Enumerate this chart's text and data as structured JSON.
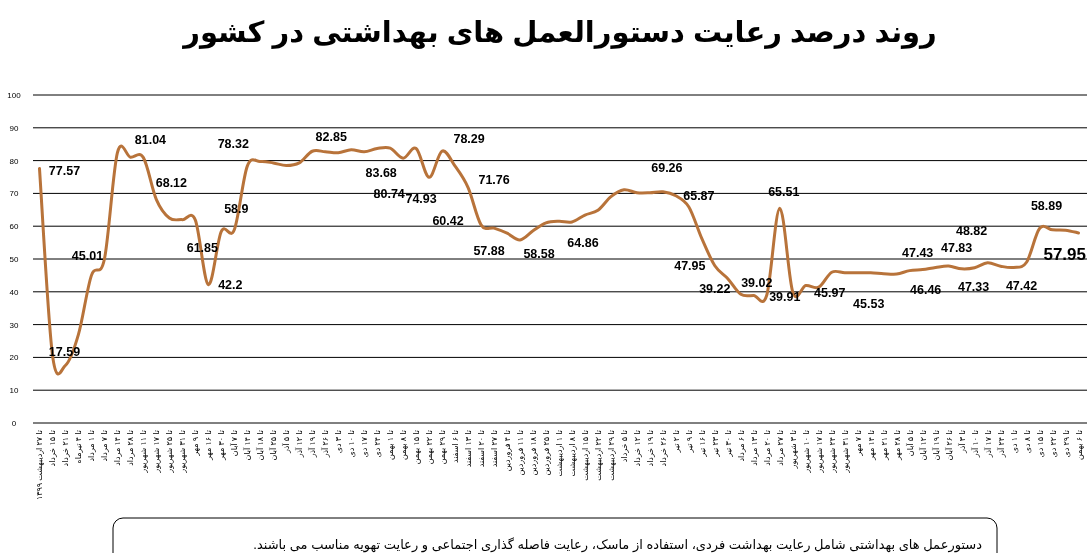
{
  "chart_data": {
    "type": "line",
    "title": "روند درصد رعایت دستورالعمل های بهداشتی در کشور",
    "annotations": [
      "دستورعمل های بهداشتی شامل رعایت بهداشت فردی، استفاده از ماسک، رعایت فاصله گذاری اجتماعی و رعایت تهویه مناسب می باشند."
    ],
    "categories": [
      "تا ۲۷ اردیبهشت ۱۳۹۹",
      "تا ۱۵ خرداد",
      "تا ۲۱ خرداد",
      "تا ۴ تیرماه",
      "تا ۱ مرداد",
      "تا ۷ مرداد",
      "تا ۱۴ مرداد",
      "تا ۲۸ مرداد",
      "تا ۱۱ شهریور",
      "تا ۱۷ شهریور",
      "تا ۲۵ شهریور",
      "تا ۳۱ شهریور",
      "تا ۹ مهر",
      "تا ۱۶ مهر",
      "تا ۳۰ مهر",
      "تا ۷ آبان",
      "تا ۱۴ آبان",
      "تا ۱۸ آبان",
      "تا ۲۵ آبان",
      "تا ۵ آذر",
      "تا ۱۲ آذر",
      "تا ۱۹ آذر",
      "تا ۲۶ آذر",
      "تا ۳ دی",
      "تا ۱۰ دی",
      "تا ۱۷ دی",
      "تا ۲۴ دی",
      "تا ۱ بهمن",
      "تا ۸ بهمن",
      "تا ۱۵ بهمن",
      "تا ۲۲ بهمن",
      "تا ۲۹ بهمن",
      "تا ۶ اسفند",
      "تا ۱۳ اسفند",
      "تا ۲۰ اسفند",
      "تا ۲۷ اسفند",
      "تا ۴ فروردین",
      "تا ۱۱ فروردین",
      "تا ۱۸ فروردین",
      "تا ۲۵ فروردین",
      "تا ۱ اردیبهشت",
      "تا ۸ اردیبهشت",
      "تا ۱۵ اردیبهشت",
      "تا ۲۲ اردیبهشت",
      "تا ۲۹ اردیبهشت",
      "تا ۵ خرداد",
      "تا ۱۲ خرداد",
      "تا ۱۹ خرداد",
      "تا ۲۶ خرداد",
      "تا ۲ تیر",
      "تا ۹ تیر",
      "تا ۱۶ تیر",
      "تا ۲۳ تیر",
      "تا ۳۰ تیر",
      "تا ۶ مرداد",
      "تا ۱۳ مرداد",
      "تا ۲۰ مرداد",
      "تا ۲۷ مرداد",
      "تا ۳ شهریور",
      "تا ۱۰ شهریور",
      "تا ۱۷ شهریور",
      "تا ۲۴ شهریور",
      "تا ۳۱ شهریور",
      "تا ۷ مهر",
      "تا ۱۴ مهر",
      "تا ۲۱ مهر",
      "تا ۲۸ مهر",
      "تا ۵ آبان",
      "تا ۱۲ آبان",
      "تا ۱۹ آبان",
      "تا ۲۶ آبان",
      "تا ۳ آذر",
      "تا ۱۰ آذر",
      "تا ۱۷ آذر",
      "تا ۲۴ آذر",
      "تا ۱ دی",
      "تا ۸ دی",
      "تا ۱۵ دی",
      "تا ۲۲ دی",
      "تا ۲۹ دی",
      "تا ۶ بهمن"
    ],
    "series": [
      {
        "color": "#b8733a",
        "values": [
          77.57,
          20.7,
          17.59,
          27,
          45.01,
          50,
          82.4,
          81.04,
          80.9,
          68.12,
          62.5,
          62,
          61.85,
          42.2,
          58.4,
          58.9,
          78.32,
          79.7,
          79.3,
          78.5,
          79.3,
          82.85,
          82.7,
          82.4,
          83.3,
          82.7,
          83.68,
          83.8,
          80.74,
          83.7,
          74.93,
          82.9,
          78.29,
          71.76,
          60.42,
          59.4,
          57.88,
          55.8,
          58.58,
          61,
          61.5,
          61.3,
          63.4,
          64.86,
          69,
          71.1,
          70.2,
          70.2,
          70.5,
          69.26,
          65.87,
          56.2,
          47.95,
          44,
          39.22,
          38.9,
          39.02,
          65.51,
          39.91,
          41.9,
          41.4,
          45.97,
          45.8,
          45.8,
          45.8,
          45.53,
          45.4,
          46.46,
          46.8,
          47.43,
          47.83,
          47,
          47.33,
          48.82,
          47.8,
          47.42,
          49,
          59.3,
          58.89,
          58.8,
          57.95
        ],
        "value_labels": [
          "77.57",
          null,
          "17.59",
          null,
          "45.01",
          null,
          null,
          "81.04",
          null,
          "68.12",
          null,
          null,
          "61.85",
          "42.2",
          null,
          "58.9",
          "78.32",
          null,
          null,
          null,
          null,
          "82.85",
          null,
          null,
          null,
          null,
          "83.68",
          null,
          "80.74",
          null,
          "74.93",
          null,
          "78.29",
          "71.76",
          "60.42",
          null,
          "57.88",
          null,
          "58.58",
          null,
          null,
          null,
          null,
          "64.86",
          null,
          null,
          null,
          null,
          null,
          "69.26",
          "65.87",
          null,
          "47.95",
          null,
          "39.22",
          null,
          "39.02",
          "65.51",
          "39.91",
          null,
          null,
          "45.97",
          null,
          null,
          null,
          "45.53",
          null,
          "46.46",
          null,
          "47.43",
          "47.83",
          null,
          "47.33",
          "48.82",
          null,
          "47.42",
          null,
          null,
          "58.89",
          null,
          "57.95"
        ]
      }
    ],
    "ylim": [
      0,
      100
    ],
    "yticks": [
      0,
      10,
      20,
      30,
      40,
      50,
      60,
      70,
      80,
      90,
      100
    ],
    "grid": "y"
  }
}
